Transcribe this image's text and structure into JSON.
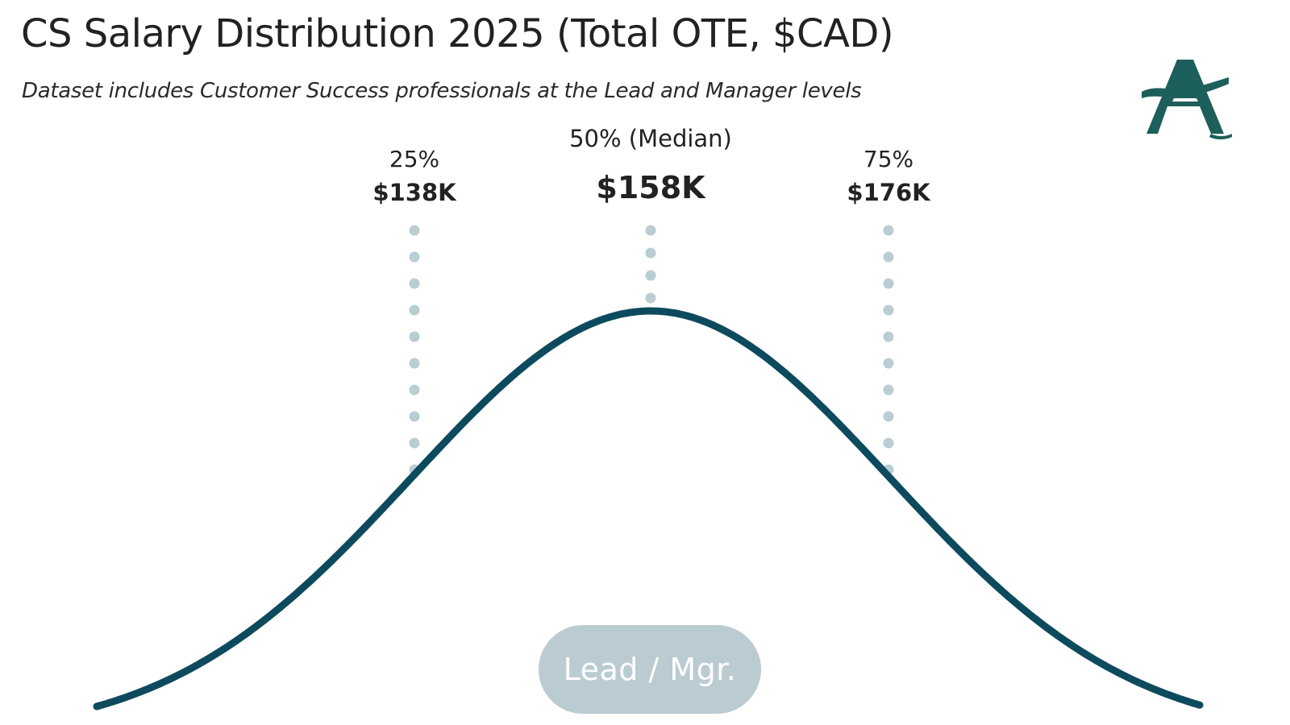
{
  "title": "CS Salary Distribution 2025 (Total OTE, $CAD)",
  "subtitle": "Dataset includes Customer Success professionals at the Lead and Manager levels",
  "logo": {
    "icon": "letter-a-logo-icon",
    "color": "#1d5f5a"
  },
  "colors": {
    "curve": "#0d4a5e",
    "guide_dots": "#b9cdd3",
    "pill_bg": "#bacbd1",
    "pill_text": "#ffffff"
  },
  "chart_data": {
    "type": "line",
    "title": "CS Salary Distribution 2025 (Total OTE, $CAD)",
    "xlabel": "",
    "ylabel": "",
    "grid": false,
    "curve": "normal distribution (bell curve)",
    "category_label": "Lead / Mgr.",
    "percentiles": [
      {
        "percentile": "25%",
        "value": 138,
        "value_label": "$138K"
      },
      {
        "percentile": "50% (Median)",
        "value": 158,
        "value_label": "$158K"
      },
      {
        "percentile": "75%",
        "value": 176,
        "value_label": "$176K"
      }
    ]
  }
}
